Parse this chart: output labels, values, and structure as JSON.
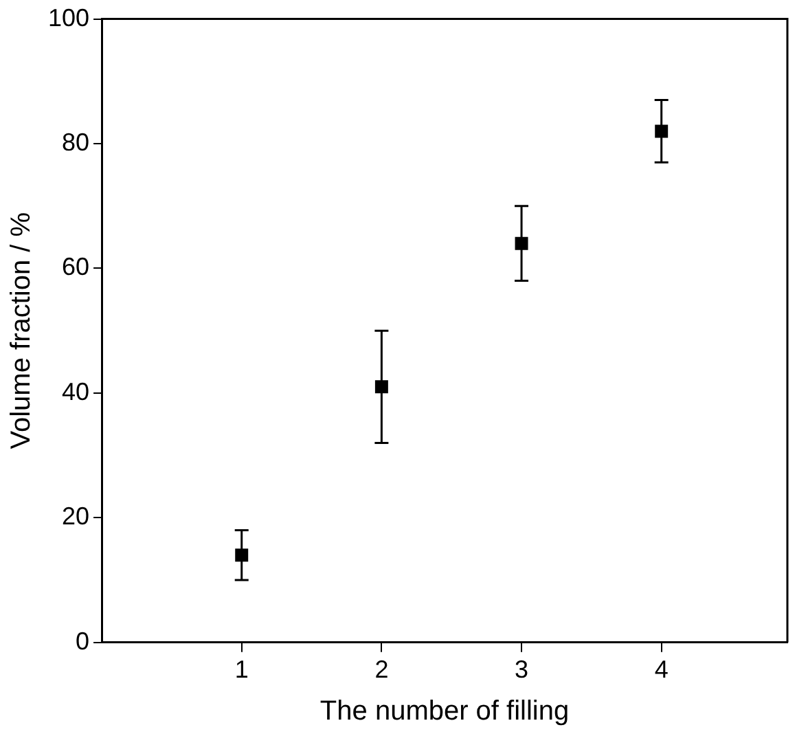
{
  "chart_data": {
    "type": "scatter",
    "xlabel": "The number of filling",
    "ylabel": "Volume fraction / %",
    "x": [
      1,
      2,
      3,
      4
    ],
    "values": [
      14,
      41,
      64,
      82
    ],
    "errors": [
      [
        10,
        18
      ],
      [
        32,
        50
      ],
      [
        58,
        70
      ],
      [
        77,
        87
      ]
    ],
    "color": "#000000",
    "marker": "square",
    "xlim": [
      0,
      4.9
    ],
    "xticks": [
      1,
      2,
      3,
      4
    ],
    "ylim": [
      0,
      100
    ],
    "yticks": [
      0,
      20,
      40,
      60,
      80,
      100
    ],
    "grid": false,
    "legend": false
  }
}
